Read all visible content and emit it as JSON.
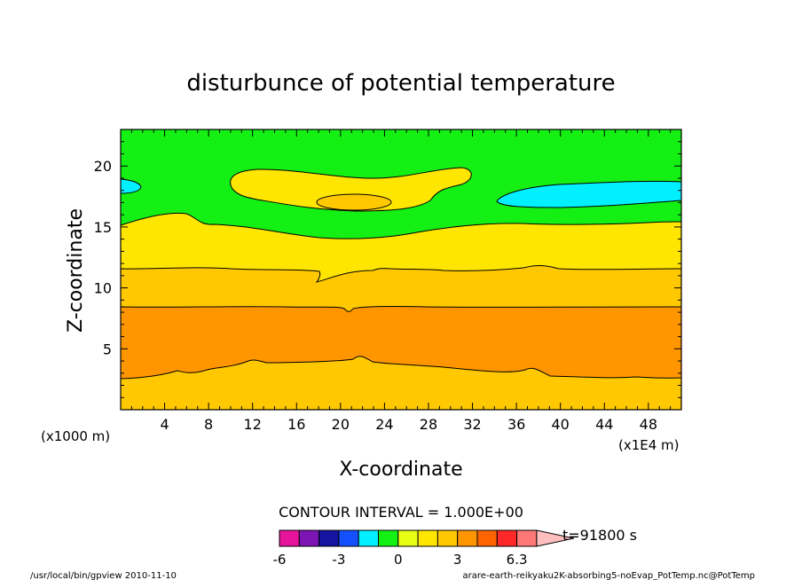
{
  "chart_data": {
    "type": "contour",
    "title": "disturbunce of potential temperature",
    "xlabel": "X-coordinate",
    "ylabel": "Z-coordinate",
    "x_unit_left": "(x1000 m)",
    "x_unit_right": "(x1E4 m)",
    "xlim": [
      0,
      51
    ],
    "ylim": [
      0,
      23
    ],
    "x_ticks": [
      4,
      8,
      12,
      16,
      20,
      24,
      28,
      32,
      36,
      40,
      44,
      48
    ],
    "y_ticks": [
      5,
      10,
      15,
      20
    ],
    "contour_interval": "CONTOUR INTERVAL = 1.000E+00",
    "time_label": "t=91800 s",
    "colorbar": {
      "ticks": [
        "-6",
        "-3",
        "0",
        "3",
        "6.3"
      ],
      "colors": [
        "#e6149b",
        "#7d14b4",
        "#1414a0",
        "#1450ff",
        "#00f0ff",
        "#14f014",
        "#e6ff14",
        "#ffe600",
        "#ffc800",
        "#ff9600",
        "#ff6400",
        "#ff2828",
        "#ff7878",
        "#ffbebe"
      ]
    },
    "regions": [
      {
        "level": "3 to 4",
        "color": "#ffc800",
        "z_range": [
          0,
          2.7
        ]
      },
      {
        "level": "4 to 5",
        "color": "#ff9600",
        "z_range": [
          2.7,
          8.4
        ]
      },
      {
        "level": "3 to 4",
        "color": "#ffc800",
        "z_range": [
          8.4,
          11.5
        ]
      },
      {
        "level": "2 to 3",
        "color": "#ffe600",
        "z_range": [
          11.5,
          15.2
        ]
      },
      {
        "level": "1 to 2",
        "color": "#14f014",
        "z_range": [
          15.2,
          23
        ]
      },
      {
        "level": "2 to 3",
        "color": "#ffe600",
        "x_range": [
          9.5,
          32
        ],
        "z_range": [
          15.5,
          19.9
        ]
      },
      {
        "level": "3 to 4",
        "color": "#ffc800",
        "x_range": [
          18,
          24.5
        ],
        "z_range": [
          16.5,
          17.8
        ]
      },
      {
        "level": "0 to 1",
        "color": "#00f0ff",
        "x_range": [
          34.5,
          51
        ],
        "z_range": [
          16.5,
          18.5
        ]
      },
      {
        "level": "0 to 1",
        "color": "#00f0ff",
        "x_range": [
          0,
          1.8
        ],
        "z_range": [
          17.4,
          18.7
        ]
      }
    ]
  },
  "footer": {
    "left": "/usr/local/bin/gpview  2010-11-10",
    "right": "arare-earth-reikyaku2K-absorbing5-noEvap_PotTemp.nc@PotTemp"
  }
}
